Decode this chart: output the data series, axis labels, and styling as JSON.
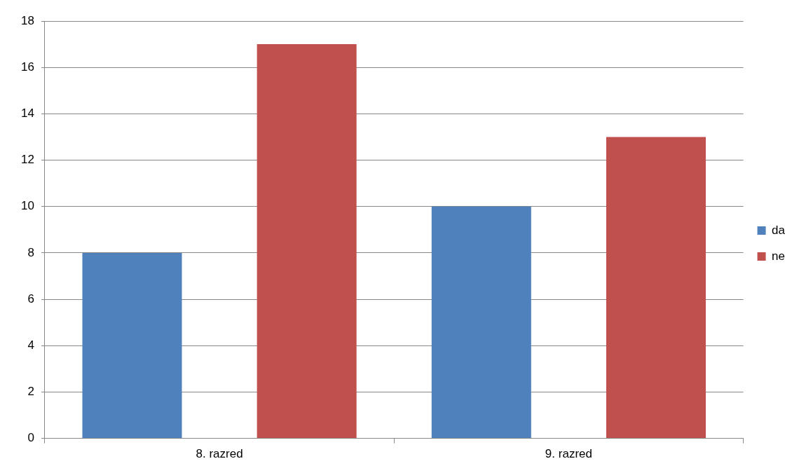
{
  "chart_data": {
    "type": "bar",
    "categories": [
      "8. razred",
      "9. razred"
    ],
    "series": [
      {
        "name": "da",
        "color": "#4f81bd",
        "values": [
          8,
          10
        ]
      },
      {
        "name": "ne",
        "color": "#c0504d",
        "values": [
          17,
          13
        ]
      }
    ],
    "ylim": [
      0,
      18
    ],
    "yticks": [
      0,
      2,
      4,
      6,
      8,
      10,
      12,
      14,
      16,
      18
    ],
    "grid": "y",
    "legend": "right"
  }
}
